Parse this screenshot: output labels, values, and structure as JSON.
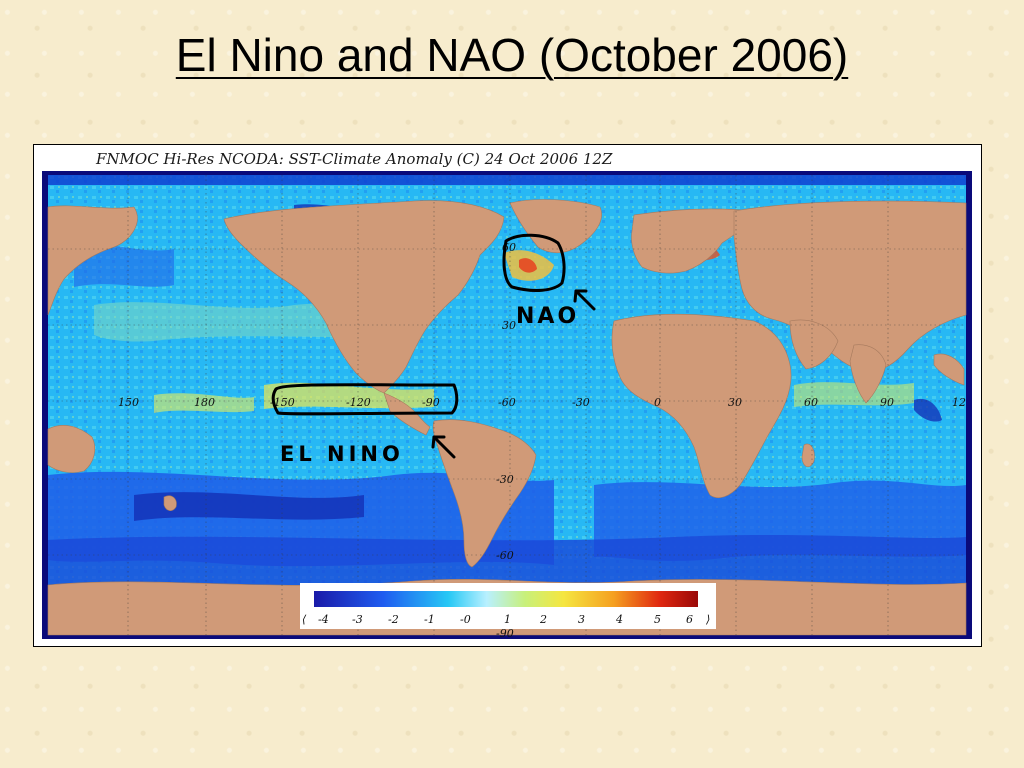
{
  "slide": {
    "title": "El Nino and NAO (October 2006)"
  },
  "map": {
    "header": "FNMOC Hi-Res NCODA: SST-Climate Anomaly (C)    24 Oct 2006 12Z",
    "longitude_labels": [
      "150",
      "180",
      "-150",
      "-120",
      "-90",
      "-60",
      "-30",
      "0",
      "30",
      "60",
      "90",
      "12"
    ],
    "latitude_labels": [
      "60",
      "30",
      "-30",
      "-60",
      "-90"
    ],
    "colors": {
      "land": "#d09a78",
      "ocean_base": "#27b8f4",
      "cold": "#1a3fd6",
      "warm": "#f2e84a",
      "frame": "#0a0a7a"
    }
  },
  "colorbar": {
    "left_marker": "⟨",
    "right_marker": "⟩",
    "ticks": [
      "-4",
      "-3",
      "-2",
      "-1",
      "-0",
      "1",
      "2",
      "3",
      "4",
      "5",
      "6"
    ],
    "range": [
      -4,
      6
    ]
  },
  "annotations": {
    "nao_label": "NAO",
    "el_nino_label": "EL NINO"
  }
}
